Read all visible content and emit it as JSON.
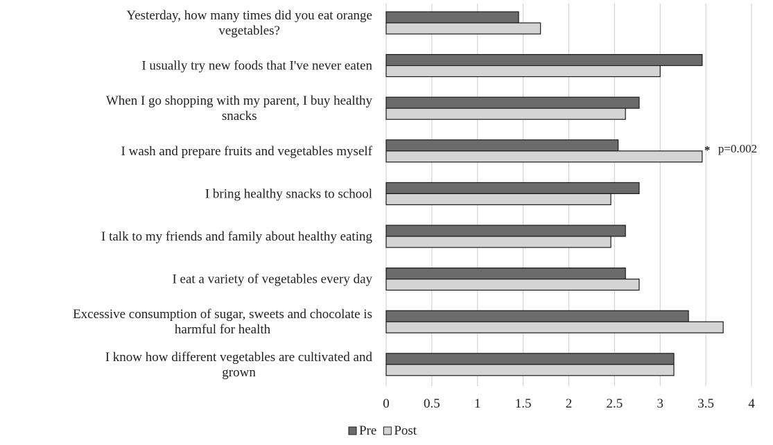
{
  "chart_data": {
    "type": "bar",
    "orientation": "horizontal",
    "categories": [
      [
        "Yesterday, how many times did you eat orange",
        "vegetables?"
      ],
      [
        "I usually try new foods that I've never eaten"
      ],
      [
        "When I go shopping with my parent, I buy healthy",
        "snacks"
      ],
      [
        "I wash and prepare fruits and vegetables myself"
      ],
      [
        "I bring healthy snacks to school"
      ],
      [
        "I talk to my friends and family about healthy eating"
      ],
      [
        "I eat a variety of vegetables every day"
      ],
      [
        "Excessive consumption of sugar, sweets and chocolate is",
        "harmful for health"
      ],
      [
        "I know how different vegetables are cultivated and",
        "grown"
      ]
    ],
    "series": [
      {
        "name": "Pre",
        "color": "#6b6b6b",
        "values": [
          1.45,
          3.46,
          2.77,
          2.54,
          2.77,
          2.62,
          2.62,
          3.31,
          3.15
        ]
      },
      {
        "name": "Post",
        "color": "#d4d4d4",
        "values": [
          1.69,
          3.0,
          2.62,
          3.46,
          2.46,
          2.46,
          2.77,
          3.69,
          3.15
        ]
      }
    ],
    "xlim": [
      0,
      4
    ],
    "xticks": [
      "0",
      "0.5",
      "1",
      "1.5",
      "2",
      "2.5",
      "3",
      "3.5",
      "4"
    ],
    "grid": "vertical",
    "legend_position": "bottom",
    "annotations": [
      {
        "category_index": 3,
        "series": "Post",
        "marker": "*",
        "text": "p=0.002"
      }
    ]
  }
}
